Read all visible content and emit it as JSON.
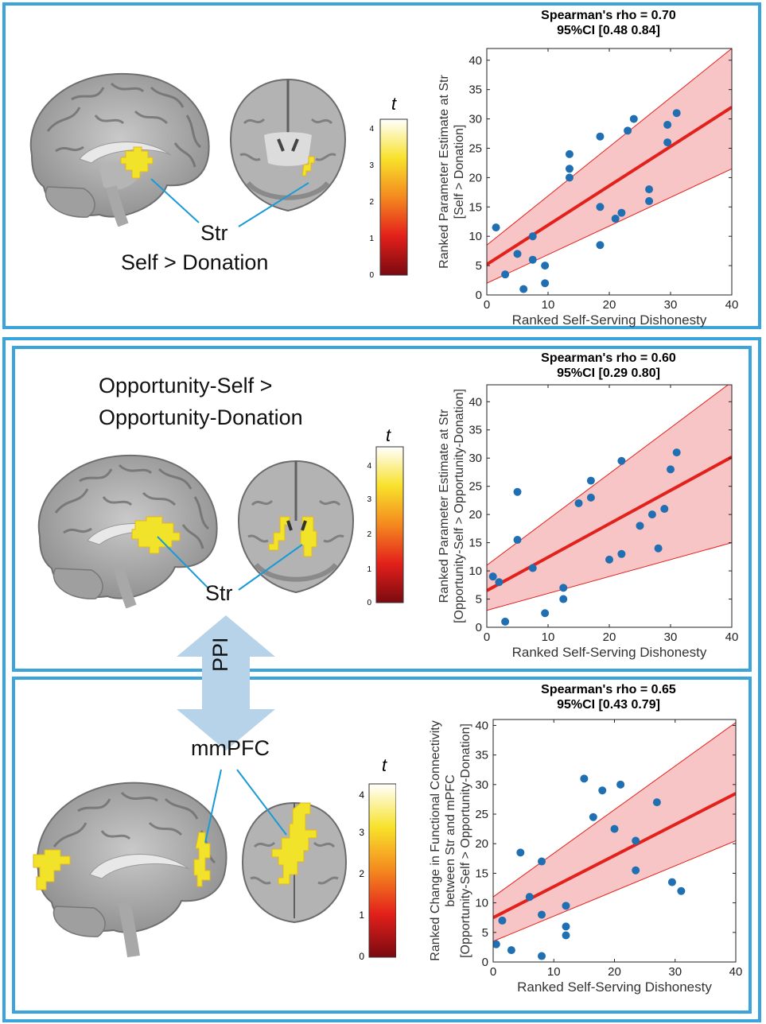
{
  "panels": [
    {
      "contrast_lines": [
        "",
        "Self > Donation"
      ],
      "roi_label": "Str",
      "colorbar": {
        "label": "t",
        "ticks": [
          "0",
          "1",
          "2",
          "3",
          "4"
        ]
      },
      "title_line1": "Spearman's rho = 0.70",
      "title_line2": "95%CI [0.48 0.84]"
    },
    {
      "contrast_lines": [
        "Opportunity-Self >",
        "Opportunity-Donation"
      ],
      "roi_label": "Str",
      "colorbar": {
        "label": "t",
        "ticks": [
          "0",
          "1",
          "2",
          "3",
          "4"
        ]
      },
      "title_line1": "Spearman's rho = 0.60",
      "title_line2": "95%CI [0.29 0.80]"
    },
    {
      "roi_label": "mmPFC",
      "colorbar": {
        "label": "t",
        "ticks": [
          "0",
          "1",
          "2",
          "3",
          "4"
        ]
      },
      "title_line1": "Spearman's rho = 0.65",
      "title_line2": "95%CI [0.43 0.79]"
    }
  ],
  "ppi_label": "PPI",
  "colors": {
    "frame": "#3ba4dd",
    "points": "#1f6fb2",
    "fit": "#e3211c",
    "ci_fill": "#f7c5c5",
    "arrow": "#b7d3ea"
  },
  "chart_data": [
    {
      "type": "scatter",
      "title": "Spearman's rho = 0.70\n95%CI [0.48 0.84]",
      "xlabel": "Ranked Self-Serving Dishonesty",
      "ylabel_lines": [
        "Ranked Parameter Estimate at Str",
        "[Self > Donation]"
      ],
      "xlim": [
        0,
        40
      ],
      "ylim": [
        0,
        42
      ],
      "xticks": [
        0,
        10,
        20,
        30,
        40
      ],
      "yticks": [
        0,
        5,
        10,
        15,
        20,
        25,
        30,
        35,
        40
      ],
      "x": [
        1.5,
        3,
        5,
        6,
        7.5,
        7.5,
        9.5,
        9.5,
        13.5,
        13.5,
        13.5,
        18.5,
        18.5,
        18.5,
        21,
        22,
        23,
        24,
        26.5,
        26.5,
        29.5,
        29.5,
        31
      ],
      "y": [
        11.5,
        3.5,
        7,
        1,
        10,
        6,
        5,
        2,
        24,
        21.5,
        20,
        27,
        15,
        8.5,
        13,
        14,
        28,
        30,
        18,
        16,
        29,
        26,
        31
      ],
      "fit": {
        "x": [
          0,
          40
        ],
        "y": [
          5.2,
          32
        ]
      },
      "ci_upper": {
        "x": [
          0,
          40
        ],
        "y": [
          8.5,
          42
        ]
      },
      "ci_lower": {
        "x": [
          0,
          40
        ],
        "y": [
          2,
          21.5
        ]
      }
    },
    {
      "type": "scatter",
      "title": "Spearman's rho = 0.60\n95%CI [0.29 0.80]",
      "xlabel": "Ranked Self-Serving Dishonesty",
      "ylabel_lines": [
        "Ranked Parameter Estimate at Str",
        "[Opportunity-Self > Opportunity-Donation]"
      ],
      "xlim": [
        0,
        40
      ],
      "ylim": [
        0,
        43
      ],
      "xticks": [
        0,
        10,
        20,
        30,
        40
      ],
      "yticks": [
        0,
        5,
        10,
        15,
        20,
        25,
        30,
        35,
        40
      ],
      "x": [
        1,
        2,
        3,
        5,
        5,
        7.5,
        9.5,
        12.5,
        12.5,
        15,
        17,
        17,
        20,
        22,
        22,
        25,
        27,
        28,
        29,
        30,
        31
      ],
      "y": [
        9,
        8,
        1,
        24,
        15.5,
        10.5,
        2.5,
        7,
        5,
        22,
        26,
        23,
        12,
        29.5,
        13,
        18,
        20,
        14,
        21,
        28,
        31
      ],
      "fit": {
        "x": [
          0,
          40
        ],
        "y": [
          6.5,
          30.2
        ]
      },
      "ci_upper": {
        "x": [
          0,
          40
        ],
        "y": [
          11,
          43.5
        ]
      },
      "ci_lower": {
        "x": [
          0,
          40
        ],
        "y": [
          3,
          15
        ]
      }
    },
    {
      "type": "scatter",
      "title": "Spearman's rho = 0.65\n95%CI [0.43 0.79]",
      "xlabel": "Ranked Self-Serving Dishonesty",
      "ylabel_lines": [
        "Ranked Change in Functional Connectivity",
        "between Str and mPFC",
        "[Opportunity-Self > Opportunity-Donation]"
      ],
      "xlim": [
        0,
        40
      ],
      "ylim": [
        0,
        41
      ],
      "xticks": [
        0,
        10,
        20,
        30,
        40
      ],
      "yticks": [
        0,
        5,
        10,
        15,
        20,
        25,
        30,
        35,
        40
      ],
      "x": [
        0.5,
        1.5,
        3,
        4.5,
        6,
        8,
        8,
        8,
        12,
        12,
        12,
        15,
        16.5,
        18,
        20,
        21,
        23.5,
        23.5,
        27,
        29.5,
        31
      ],
      "y": [
        3,
        7,
        2,
        18.5,
        11,
        17,
        8,
        1,
        9.5,
        6,
        4.5,
        31,
        24.5,
        29,
        22.5,
        30,
        20.5,
        15.5,
        27,
        13.5,
        12
      ],
      "fit": {
        "x": [
          0,
          40
        ],
        "y": [
          7.5,
          28.5
        ]
      },
      "ci_upper": {
        "x": [
          0,
          40
        ],
        "y": [
          11,
          40.5
        ]
      },
      "ci_lower": {
        "x": [
          0,
          40
        ],
        "y": [
          3.5,
          20.5
        ]
      }
    }
  ]
}
